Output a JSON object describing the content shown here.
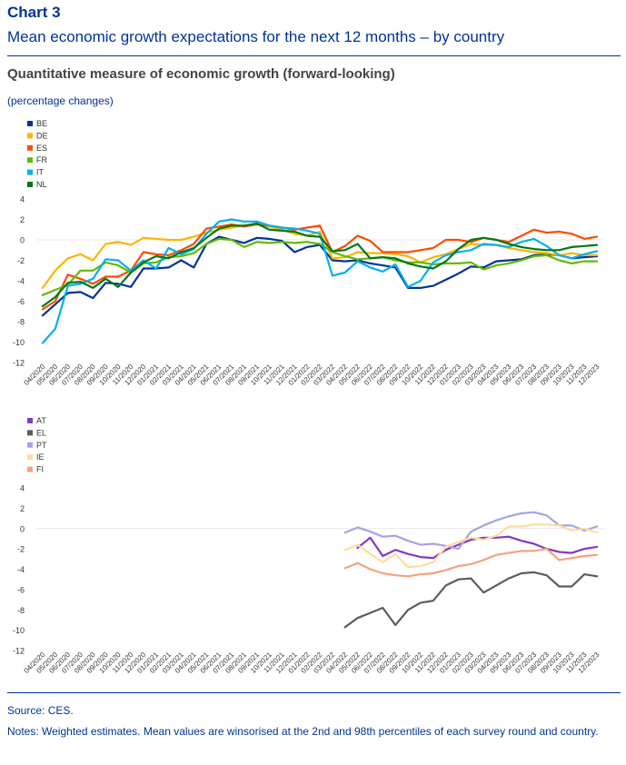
{
  "header": {
    "chart_label": "Chart 3",
    "title": "Mean economic growth expectations for the next 12 months – by country",
    "subtitle": "Quantitative measure of economic growth (forward-looking)",
    "unit": "(percentage changes)"
  },
  "footer": {
    "source": "Source: CES.",
    "notes": "Notes: Weighted estimates. Mean values are winsorised at the 2nd and 98th percentiles of each survey round and country."
  },
  "chart_data": [
    {
      "type": "line",
      "x": [
        "04/2020",
        "05/2020",
        "06/2020",
        "07/2020",
        "08/2020",
        "09/2020",
        "10/2020",
        "11/2020",
        "12/2020",
        "01/2021",
        "02/2021",
        "03/2021",
        "04/2021",
        "05/2021",
        "06/2021",
        "07/2021",
        "08/2021",
        "09/2021",
        "10/2021",
        "11/2021",
        "12/2021",
        "01/2022",
        "02/2022",
        "03/2022",
        "04/2022",
        "05/2022",
        "06/2022",
        "07/2022",
        "08/2022",
        "09/2022",
        "10/2022",
        "11/2022",
        "12/2022",
        "01/2023",
        "02/2023",
        "03/2023",
        "04/2023",
        "05/2023",
        "06/2023",
        "07/2023",
        "08/2023",
        "09/2023",
        "10/2023",
        "11/2023",
        "12/2023"
      ],
      "ylim": [
        -12,
        4
      ],
      "yticks": [
        -12,
        -10,
        -8,
        -6,
        -4,
        -2,
        0,
        2,
        4
      ],
      "legend_position": "top-left",
      "series": [
        {
          "name": "BE",
          "color": "#003399",
          "values": [
            -7.4,
            -6.3,
            -5.2,
            -5.1,
            -5.7,
            -4.2,
            -4.3,
            -4.6,
            -2.8,
            -2.8,
            -2.7,
            -2.0,
            -2.7,
            -0.4,
            0.3,
            0.0,
            -0.3,
            0.2,
            0.1,
            -0.1,
            -1.2,
            -0.7,
            -0.5,
            -2.0,
            -2.1,
            -2.0,
            -2.3,
            -2.5,
            -2.7,
            -4.7,
            -4.7,
            -4.5,
            -3.9,
            -3.3,
            -2.6,
            -2.7,
            -2.1,
            -2.0,
            -1.9,
            -1.5,
            -1.4,
            -1.5,
            -1.8,
            -1.7,
            -1.6
          ]
        },
        {
          "name": "DE",
          "color": "#FFB400",
          "values": [
            -4.7,
            -3.0,
            -1.8,
            -1.4,
            -2.0,
            -0.4,
            -0.2,
            -0.5,
            0.2,
            0.1,
            0.0,
            0.0,
            0.3,
            0.7,
            1.0,
            1.2,
            1.4,
            1.5,
            1.3,
            1.0,
            0.6,
            0.4,
            0.8,
            -1.8,
            -1.7,
            -1.2,
            -1.3,
            -1.3,
            -1.4,
            -1.6,
            -2.2,
            -1.7,
            -1.4,
            -0.9,
            -0.4,
            -0.5,
            -0.5,
            -0.8,
            -1.0,
            -1.2,
            -1.3,
            -1.5,
            -1.3,
            -1.5,
            -1.5
          ]
        },
        {
          "name": "ES",
          "color": "#FF4B00",
          "values": [
            -6.8,
            -6.0,
            -3.4,
            -3.8,
            -4.3,
            -3.6,
            -3.6,
            -3.0,
            -1.2,
            -1.4,
            -1.5,
            -1.0,
            -0.4,
            1.1,
            1.3,
            1.5,
            1.3,
            1.5,
            1.4,
            1.2,
            1.0,
            1.2,
            1.4,
            -1.2,
            -0.6,
            0.4,
            -0.1,
            -1.2,
            -1.2,
            -1.2,
            -1.0,
            -0.8,
            0.0,
            0.0,
            -0.2,
            0.2,
            0.0,
            -0.2,
            0.4,
            1.0,
            0.7,
            0.8,
            0.6,
            0.1,
            0.3
          ]
        },
        {
          "name": "FR",
          "color": "#65B800",
          "values": [
            -5.4,
            -4.9,
            -4.4,
            -3.0,
            -3.0,
            -2.2,
            -2.5,
            -3.2,
            -2.3,
            -2.2,
            -1.7,
            -1.6,
            -1.3,
            -0.4,
            0.1,
            0.0,
            -0.7,
            -0.2,
            -0.3,
            -0.2,
            -0.3,
            -0.2,
            -0.4,
            -1.2,
            -1.6,
            -1.9,
            -1.8,
            -1.7,
            -2.0,
            -2.2,
            -2.2,
            -2.4,
            -2.3,
            -2.3,
            -2.2,
            -2.9,
            -2.5,
            -2.3,
            -2.0,
            -1.6,
            -1.5,
            -2.0,
            -2.3,
            -2.1,
            -2.1
          ]
        },
        {
          "name": "IT",
          "color": "#00B1EA",
          "values": [
            -10.1,
            -8.7,
            -4.5,
            -4.3,
            -3.8,
            -1.9,
            -2.0,
            -3.0,
            -2.0,
            -2.8,
            -0.8,
            -1.4,
            -0.9,
            0.6,
            1.8,
            2.0,
            1.8,
            1.8,
            1.4,
            1.2,
            1.1,
            0.9,
            0.6,
            -3.5,
            -3.2,
            -2.1,
            -2.7,
            -3.1,
            -2.4,
            -4.6,
            -4.0,
            -2.2,
            -1.5,
            -1.2,
            -1.0,
            -0.4,
            -0.5,
            -0.7,
            -0.2,
            0.1,
            -0.6,
            -1.5,
            -1.8,
            -1.4,
            -1.1
          ]
        },
        {
          "name": "NL",
          "color": "#007816",
          "values": [
            -6.5,
            -5.6,
            -4.2,
            -4.1,
            -4.7,
            -3.8,
            -4.6,
            -3.2,
            -2.2,
            -1.6,
            -1.8,
            -1.2,
            -0.8,
            0.2,
            1.1,
            1.4,
            1.4,
            1.6,
            1.0,
            0.9,
            0.8,
            0.4,
            0.3,
            -1.1,
            -1.0,
            -0.4,
            -1.8,
            -1.7,
            -1.8,
            -2.3,
            -2.6,
            -2.8,
            -2.1,
            -0.9,
            0.0,
            0.2,
            0.0,
            -0.4,
            -0.7,
            -0.9,
            -1.0,
            -1.0,
            -0.7,
            -0.6,
            -0.5
          ]
        }
      ]
    },
    {
      "type": "line",
      "x": [
        "04/2020",
        "05/2020",
        "06/2020",
        "07/2020",
        "08/2020",
        "09/2020",
        "10/2020",
        "11/2020",
        "12/2020",
        "01/2021",
        "02/2021",
        "03/2021",
        "04/2021",
        "05/2021",
        "06/2021",
        "07/2021",
        "08/2021",
        "09/2021",
        "10/2021",
        "11/2021",
        "12/2021",
        "01/2022",
        "02/2022",
        "03/2022",
        "04/2022",
        "05/2022",
        "06/2022",
        "07/2022",
        "08/2022",
        "09/2022",
        "10/2022",
        "11/2022",
        "12/2022",
        "01/2023",
        "02/2023",
        "03/2023",
        "04/2023",
        "05/2023",
        "06/2023",
        "07/2023",
        "08/2023",
        "09/2023",
        "10/2023",
        "11/2023",
        "12/2023"
      ],
      "ylim": [
        -12,
        4
      ],
      "yticks": [
        -12,
        -10,
        -8,
        -6,
        -4,
        -2,
        0,
        2,
        4
      ],
      "legend_position": "top-left",
      "series": [
        {
          "name": "AT",
          "color": "#8139C6",
          "values": [
            null,
            null,
            null,
            null,
            null,
            null,
            null,
            null,
            null,
            null,
            null,
            null,
            null,
            null,
            null,
            null,
            null,
            null,
            null,
            null,
            null,
            null,
            null,
            null,
            null,
            -1.9,
            -0.9,
            -2.7,
            -2.1,
            -2.5,
            -2.8,
            -2.9,
            -2.1,
            -1.6,
            -1.1,
            -0.9,
            -0.9,
            -0.8,
            -1.2,
            -1.5,
            -2.0,
            -2.3,
            -2.4,
            -2.0,
            -1.8
          ]
        },
        {
          "name": "EL",
          "color": "#5C5C5C",
          "values": [
            null,
            null,
            null,
            null,
            null,
            null,
            null,
            null,
            null,
            null,
            null,
            null,
            null,
            null,
            null,
            null,
            null,
            null,
            null,
            null,
            null,
            null,
            null,
            null,
            -9.7,
            -8.8,
            -8.3,
            -7.8,
            -9.5,
            -8.0,
            -7.3,
            -7.1,
            -5.6,
            -5.0,
            -4.9,
            -6.3,
            -5.6,
            -4.9,
            -4.4,
            -4.3,
            -4.6,
            -5.7,
            -5.7,
            -4.5,
            -4.7
          ]
        },
        {
          "name": "PT",
          "color": "#A6A3E0",
          "values": [
            null,
            null,
            null,
            null,
            null,
            null,
            null,
            null,
            null,
            null,
            null,
            null,
            null,
            null,
            null,
            null,
            null,
            null,
            null,
            null,
            null,
            null,
            null,
            null,
            -0.4,
            0.1,
            -0.3,
            -0.8,
            -0.7,
            -1.2,
            -1.6,
            -1.5,
            -1.7,
            -2.0,
            -0.3,
            0.3,
            0.8,
            1.2,
            1.5,
            1.6,
            1.3,
            0.3,
            0.3,
            -0.2,
            0.2
          ]
        },
        {
          "name": "IE",
          "color": "#FFDCA0",
          "values": [
            null,
            null,
            null,
            null,
            null,
            null,
            null,
            null,
            null,
            null,
            null,
            null,
            null,
            null,
            null,
            null,
            null,
            null,
            null,
            null,
            null,
            null,
            null,
            null,
            -2.1,
            -1.6,
            -2.5,
            -3.3,
            -2.5,
            -3.8,
            -3.7,
            -3.3,
            -1.8,
            -1.3,
            -0.9,
            -1.1,
            -0.7,
            0.2,
            0.2,
            0.4,
            0.4,
            0.3,
            -0.2,
            0.0,
            -0.4
          ]
        },
        {
          "name": "FI",
          "color": "#F3A27E",
          "values": [
            null,
            null,
            null,
            null,
            null,
            null,
            null,
            null,
            null,
            null,
            null,
            null,
            null,
            null,
            null,
            null,
            null,
            null,
            null,
            null,
            null,
            null,
            null,
            null,
            -3.9,
            -3.4,
            -4.0,
            -4.4,
            -4.6,
            -4.7,
            -4.5,
            -4.4,
            -4.1,
            -3.7,
            -3.5,
            -3.1,
            -2.6,
            -2.4,
            -2.2,
            -2.2,
            -2.0,
            -3.1,
            -2.9,
            -2.7,
            -2.6
          ]
        }
      ]
    }
  ]
}
